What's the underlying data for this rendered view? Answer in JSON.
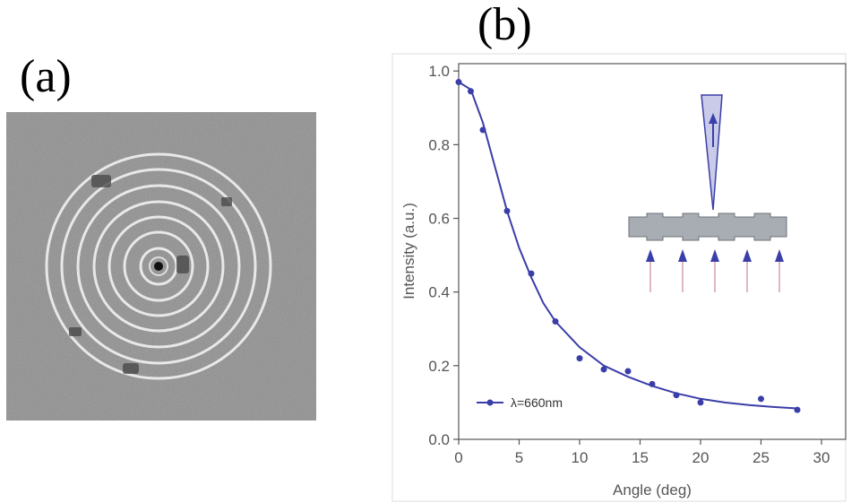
{
  "panels": {
    "a_label": "(a)",
    "b_label": "(b)"
  },
  "chart_data": {
    "type": "scatter",
    "xlabel": "Angle (deg)",
    "ylabel": "Intensity (a.u.)",
    "xlim": [
      0,
      32
    ],
    "ylim": [
      0,
      1.02
    ],
    "xticks": [
      0,
      5,
      10,
      15,
      20,
      25,
      30
    ],
    "yticks": [
      0.0,
      0.2,
      0.4,
      0.6,
      0.8,
      1.0
    ],
    "yticklabels": [
      "0.0",
      "0.2",
      "0.4",
      "0.6",
      "0.8",
      "1.0"
    ],
    "grid": false,
    "legend_position": "bottom-left",
    "series": [
      {
        "name": "λ=660nm",
        "color": "#3a3ea8",
        "points": [
          [
            0,
            0.97
          ],
          [
            1,
            0.945
          ],
          [
            2,
            0.84
          ],
          [
            4,
            0.62
          ],
          [
            6,
            0.45
          ],
          [
            8,
            0.32
          ],
          [
            10,
            0.22
          ],
          [
            12,
            0.19
          ],
          [
            14,
            0.185
          ],
          [
            16,
            0.15
          ],
          [
            18,
            0.12
          ],
          [
            20,
            0.1
          ],
          [
            25,
            0.11
          ],
          [
            28,
            0.08
          ]
        ],
        "fit_curve": [
          [
            0,
            0.97
          ],
          [
            1,
            0.95
          ],
          [
            2,
            0.86
          ],
          [
            3,
            0.74
          ],
          [
            4,
            0.62
          ],
          [
            5,
            0.52
          ],
          [
            6,
            0.44
          ],
          [
            7,
            0.37
          ],
          [
            8,
            0.32
          ],
          [
            10,
            0.25
          ],
          [
            12,
            0.2
          ],
          [
            14,
            0.17
          ],
          [
            16,
            0.145
          ],
          [
            18,
            0.125
          ],
          [
            20,
            0.11
          ],
          [
            22,
            0.1
          ],
          [
            24,
            0.093
          ],
          [
            26,
            0.088
          ],
          [
            28,
            0.084
          ]
        ]
      }
    ],
    "inset": {
      "description_icon": "grating-coupler-schematic-icon",
      "beam_color": "#3a3ea8",
      "arrow_count": 5
    }
  }
}
